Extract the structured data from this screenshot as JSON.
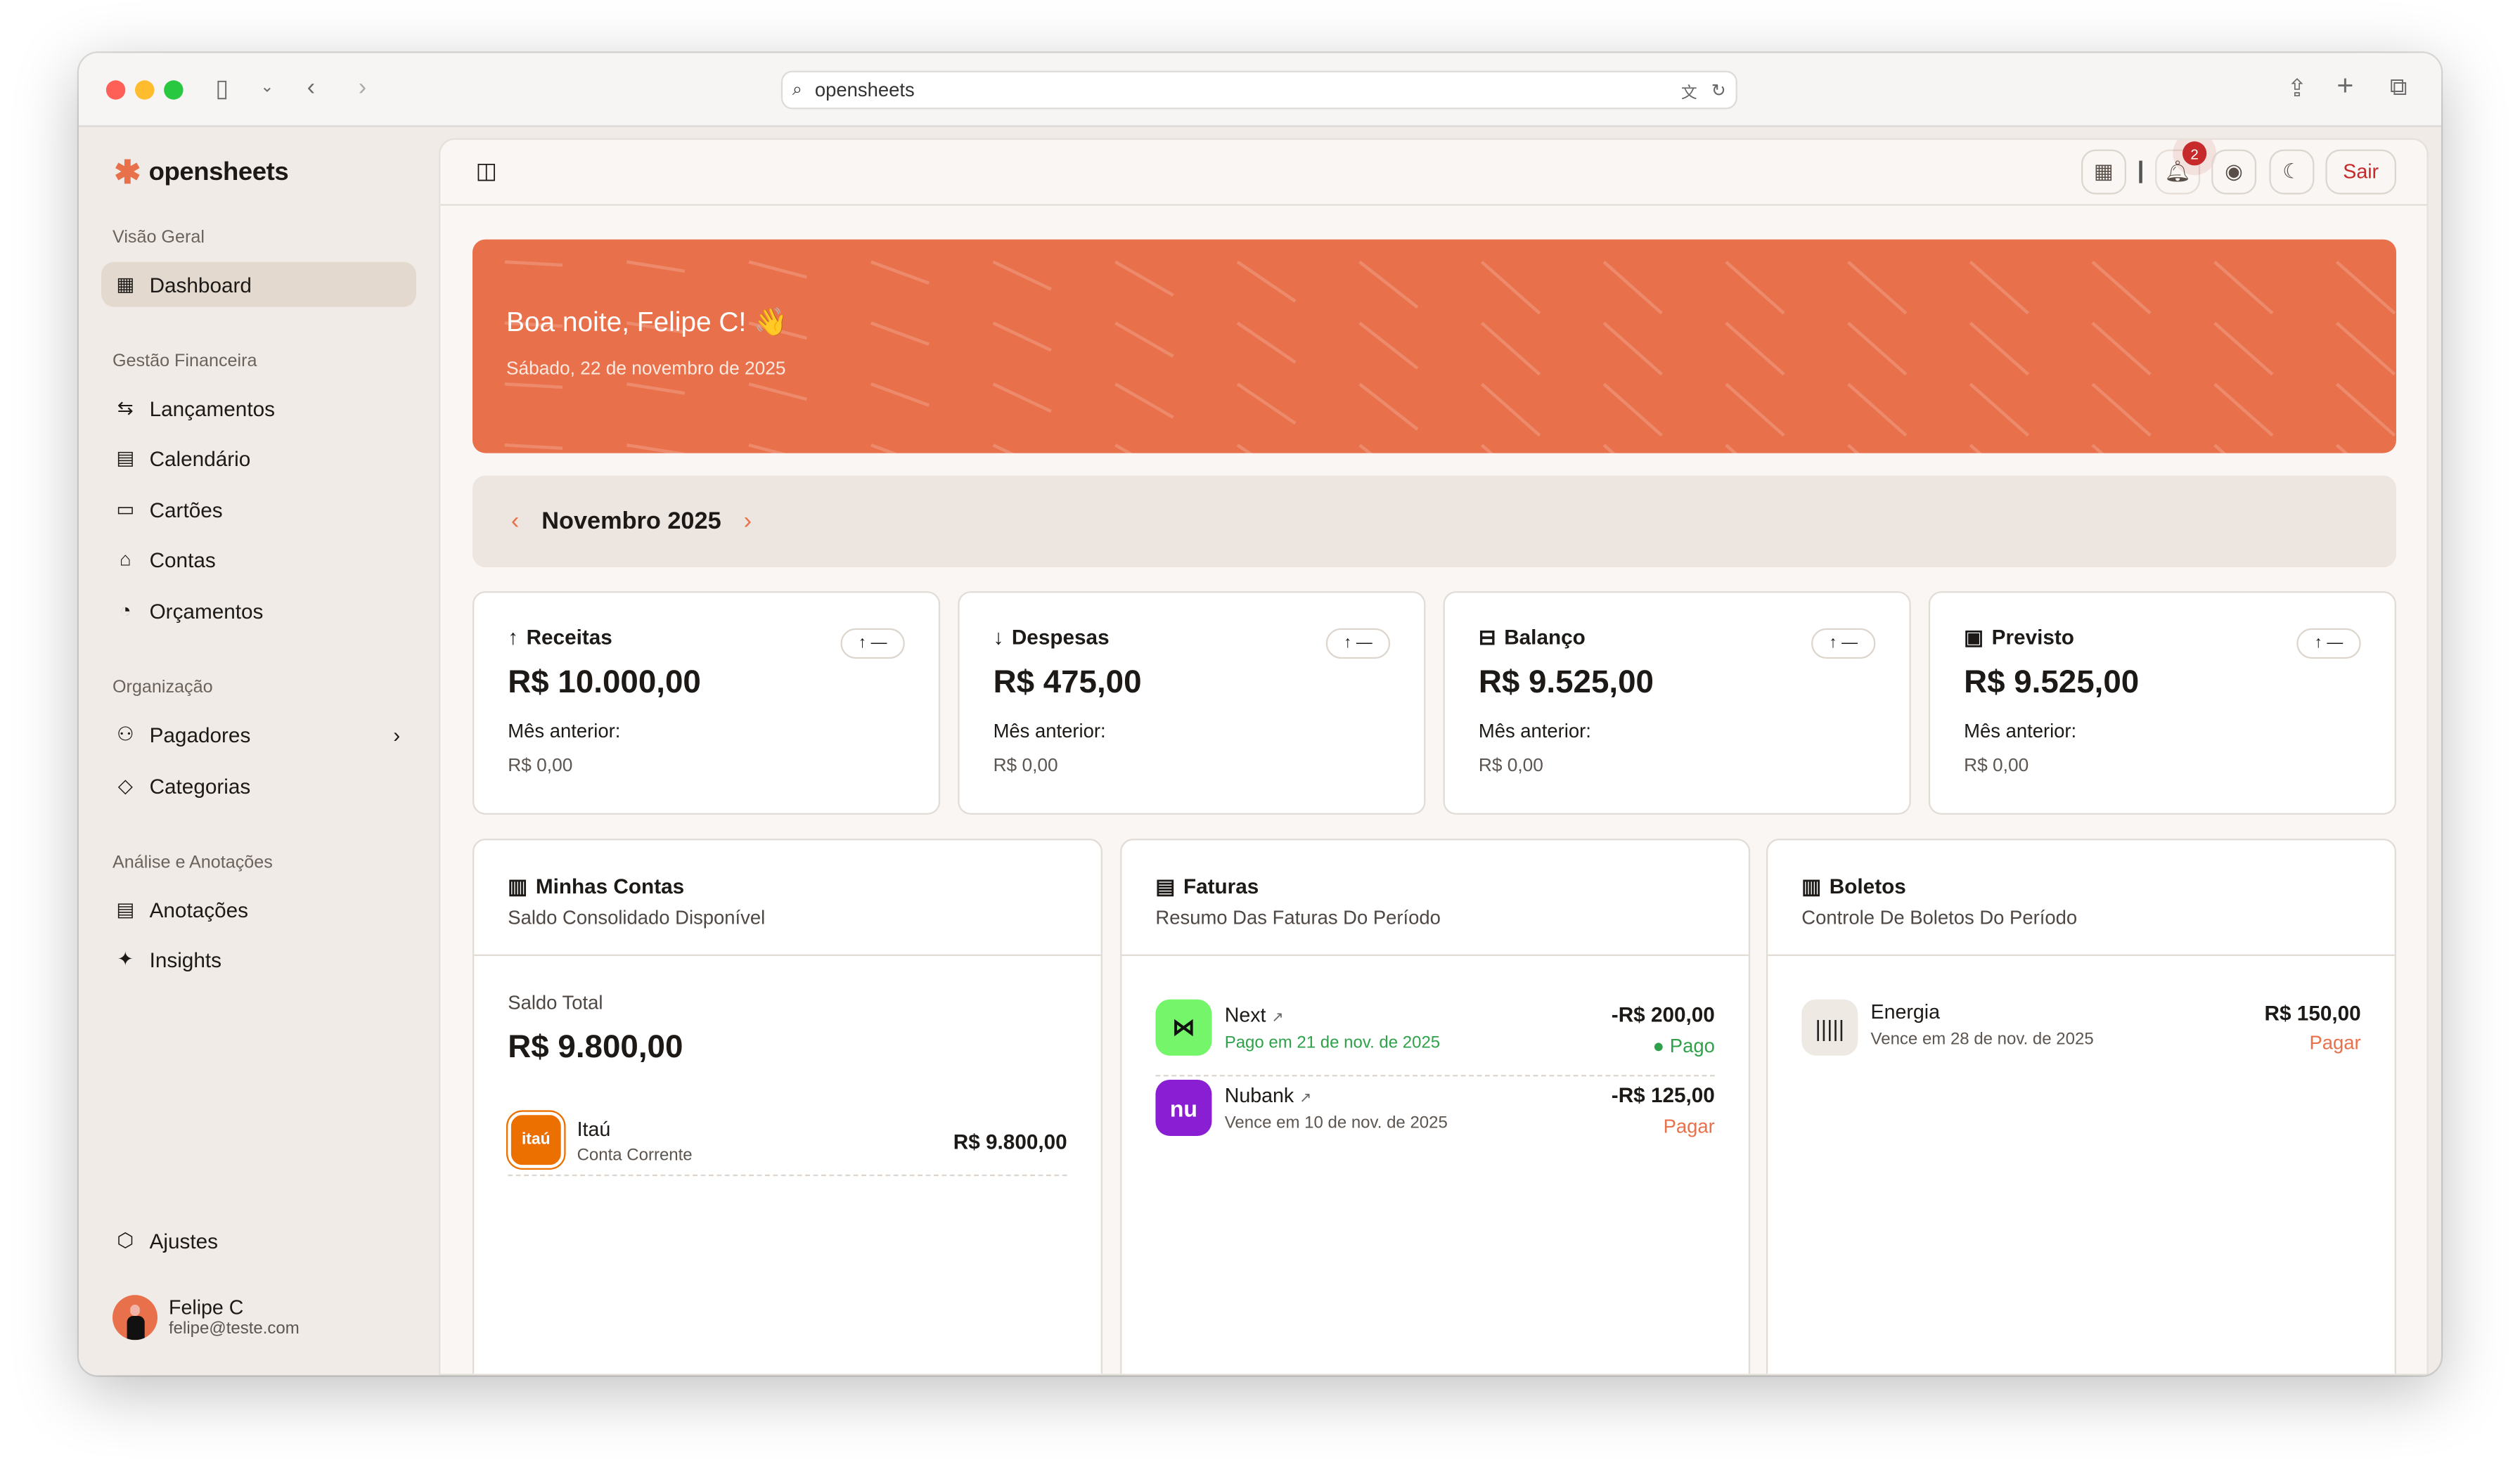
{
  "browser": {
    "url": "opensheets"
  },
  "app": {
    "name": "opensheets"
  },
  "sidebar": {
    "sections": [
      {
        "title": "Visão Geral",
        "items": [
          {
            "label": "Dashboard",
            "icon": "dashboard-icon",
            "active": true
          }
        ]
      },
      {
        "title": "Gestão Financeira",
        "items": [
          {
            "label": "Lançamentos",
            "icon": "arrows-exchange-icon"
          },
          {
            "label": "Calendário",
            "icon": "calendar-icon"
          },
          {
            "label": "Cartões",
            "icon": "credit-card-icon"
          },
          {
            "label": "Contas",
            "icon": "bank-icon"
          },
          {
            "label": "Orçamentos",
            "icon": "chart-circle-icon"
          }
        ]
      },
      {
        "title": "Organização",
        "items": [
          {
            "label": "Pagadores",
            "icon": "users-icon"
          },
          {
            "label": "Categorias",
            "icon": "tag-icon"
          }
        ]
      },
      {
        "title": "Análise e Anotações",
        "items": [
          {
            "label": "Anotações",
            "icon": "notes-icon"
          },
          {
            "label": "Insights",
            "icon": "sparkles-icon"
          }
        ]
      }
    ],
    "settings": "Ajustes",
    "user": {
      "name": "Felipe C",
      "email": "felipe@teste.com"
    }
  },
  "header": {
    "notifications": "2",
    "logout": "Sair"
  },
  "banner": {
    "greeting": "Boa noite, Felipe C! 👋",
    "date": "Sábado, 22 de novembro de 2025",
    "color": "#e8714b"
  },
  "month": {
    "label": "Novembro 2025"
  },
  "stats": [
    {
      "title": "Receitas",
      "icon": "arrow-up-icon",
      "value": "R$ 10.000,00",
      "prev_label": "Mês anterior:",
      "prev": "R$ 0,00",
      "trend": "↑ —"
    },
    {
      "title": "Despesas",
      "icon": "arrow-down-icon",
      "value": "R$ 475,00",
      "prev_label": "Mês anterior:",
      "prev": "R$ 0,00",
      "trend": "↑ —"
    },
    {
      "title": "Balanço",
      "icon": "balance-icon",
      "value": "R$ 9.525,00",
      "prev_label": "Mês anterior:",
      "prev": "R$ 0,00",
      "trend": "↑ —"
    },
    {
      "title": "Previsto",
      "icon": "forecast-icon",
      "value": "R$ 9.525,00",
      "prev_label": "Mês anterior:",
      "prev": "R$ 0,00",
      "trend": "↑ —"
    }
  ],
  "accounts": {
    "title": "Minhas Contas",
    "subtitle": "Saldo Consolidado Disponível",
    "total_label": "Saldo Total",
    "total": "R$ 9.800,00",
    "items": [
      {
        "name": "Itaú",
        "type": "Conta Corrente",
        "value": "R$ 9.800,00",
        "logo": "itaú"
      }
    ]
  },
  "invoices": {
    "title": "Faturas",
    "subtitle": "Resumo Das Faturas Do Período",
    "items": [
      {
        "name": "Next",
        "status_text": "Pago em 21 de nov. de 2025",
        "amount": "-R$ 200,00",
        "status": "Pago",
        "color": "#74f56a"
      },
      {
        "name": "Nubank",
        "status_text": "Vence em 10 de nov. de 2025",
        "amount": "-R$ 125,00",
        "status": "Pagar",
        "logo": "nu",
        "color": "#8a1ed2"
      }
    ]
  },
  "bills": {
    "title": "Boletos",
    "subtitle": "Controle De Boletos Do Período",
    "items": [
      {
        "name": "Energia",
        "status_text": "Vence em 28 de nov. de 2025",
        "amount": "R$ 150,00",
        "status": "Pagar"
      }
    ]
  }
}
